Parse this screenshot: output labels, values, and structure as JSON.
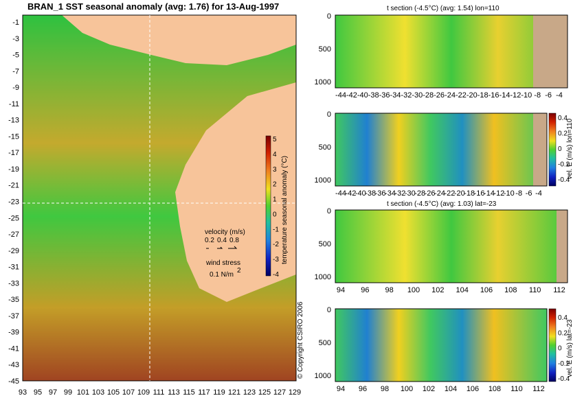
{
  "main_map": {
    "title": "BRAN_1  SST seasonal anomaly (avg: 1.76) for 13-Aug-1997",
    "lat_ticks": [
      "-1",
      "-3",
      "-5",
      "-7",
      "-9",
      "-11",
      "-13",
      "-15",
      "-17",
      "-19",
      "-21",
      "-23",
      "-25",
      "-27",
      "-29",
      "-31",
      "-33",
      "-35",
      "-37",
      "-39",
      "-41",
      "-43",
      "-45"
    ],
    "lon_ticks": [
      "93",
      "95",
      "97",
      "99",
      "101",
      "103",
      "105",
      "107",
      "109",
      "111",
      "113",
      "115",
      "117",
      "119",
      "121",
      "123",
      "125",
      "127",
      "129"
    ],
    "colorbar": {
      "label": "temperature seasonal anomaly (°C)",
      "ticks": [
        "5",
        "4",
        "3",
        "2",
        "1",
        "0",
        "-1",
        "-2",
        "-3",
        "-4"
      ]
    },
    "velocity_legend": {
      "title": "velocity (m/s)",
      "values": [
        "0.2",
        "0.4",
        "0.8"
      ]
    },
    "wind_legend": {
      "title": "wind stress",
      "value": "0.1 N/m",
      "superscript": "2"
    },
    "copyright": "© Copyright CSIRO 2006"
  },
  "panels": [
    {
      "title": "t section (-4.5°C) (avg: 1.54) lon=110",
      "y_ticks": [
        "0",
        "500",
        "1000"
      ],
      "x_ticks": [
        "-44",
        "-42",
        "-40",
        "-38",
        "-36",
        "-34",
        "-32",
        "-30",
        "-28",
        "-26",
        "-24",
        "-22",
        "-20",
        "-18",
        "-16",
        "-14",
        "-12",
        "-10",
        "-8",
        "-6",
        "-4"
      ]
    },
    {
      "title": "",
      "y_ticks": [
        "0",
        "500",
        "1000"
      ],
      "x_ticks": [
        "-44",
        "-42",
        "-40",
        "-38",
        "-36",
        "-34",
        "-32",
        "-30",
        "-28",
        "-26",
        "-24",
        "-22",
        "-20",
        "-18",
        "-16",
        "-14",
        "-12",
        "-10",
        "-8",
        "-6",
        "-4"
      ],
      "colorbar": {
        "label": "vel. E (m/s) lon=110",
        "ticks": [
          "0.4",
          "0.2",
          "0",
          "-0.2",
          "-0.4"
        ]
      }
    },
    {
      "title": "t section (-4.5°C) (avg: 1.03) lat=-23",
      "y_ticks": [
        "0",
        "500",
        "1000"
      ],
      "x_ticks": [
        "94",
        "96",
        "98",
        "100",
        "102",
        "104",
        "106",
        "108",
        "110",
        "112"
      ]
    },
    {
      "title": "",
      "y_ticks": [
        "0",
        "500",
        "1000"
      ],
      "x_ticks": [
        "94",
        "96",
        "98",
        "100",
        "102",
        "104",
        "106",
        "108",
        "110",
        "112"
      ],
      "colorbar": {
        "label": "vel. E (m/s) lat=-23",
        "ticks": [
          "0.4",
          "0.2",
          "0",
          "-0.2",
          "-0.4"
        ]
      }
    }
  ],
  "colors": {
    "land": "#f7c49a",
    "depth_mask": "#c8a888",
    "ocean_warm": "#f0a020",
    "ocean_green": "#2ec838",
    "ocean_yellow": "#e8e820",
    "ocean_red": "#c8201c",
    "ocean_blue": "#2060e0",
    "arrow": "#ff40c0"
  }
}
